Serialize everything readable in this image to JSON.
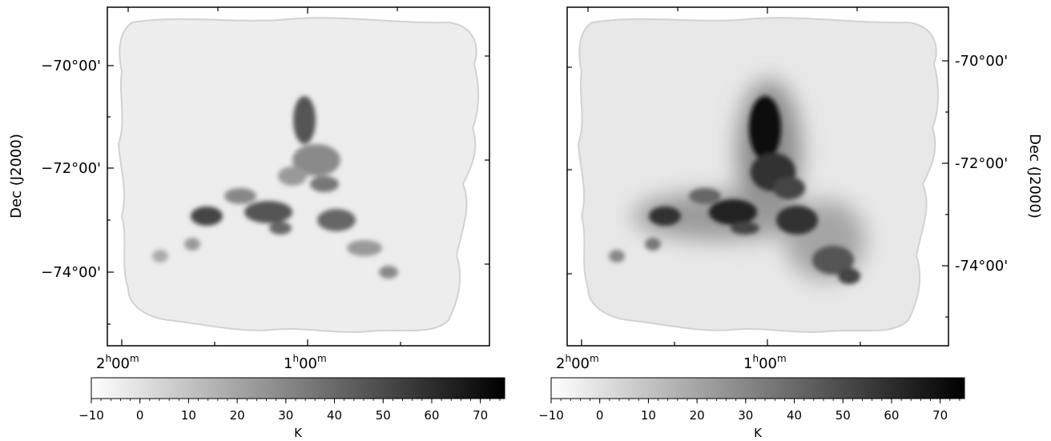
{
  "panels": [
    {
      "id": "left",
      "ra_ticks": [
        {
          "value": "2h00m",
          "h": "2",
          "m": "00"
        },
        {
          "value": "1h00m",
          "h": "1",
          "m": "00"
        }
      ],
      "dec_ticks": [
        "−70°00'",
        "−72°00'",
        "−74°00'"
      ],
      "dec_axis_title": "Dec (J2000)",
      "dec_axis_side": "left",
      "colorbar": {
        "label": "K",
        "ticks": [
          "−10",
          "0",
          "10",
          "20",
          "30",
          "40",
          "50",
          "60",
          "70"
        ],
        "range": [
          -10,
          75
        ],
        "colormap": "gray_r"
      }
    },
    {
      "id": "right",
      "ra_ticks": [
        {
          "value": "2h00m",
          "h": "2",
          "m": "00"
        },
        {
          "value": "1h00m",
          "h": "1",
          "m": "00"
        }
      ],
      "dec_ticks": [
        "-70°00'",
        "-72°00'",
        "-74°00'"
      ],
      "dec_axis_title": "Dec (J2000)",
      "dec_axis_side": "right",
      "colorbar": {
        "label": "K",
        "ticks": [
          "−10",
          "0",
          "10",
          "20",
          "30",
          "40",
          "50",
          "60",
          "70"
        ],
        "range": [
          -10,
          75
        ],
        "colormap": "gray_r"
      }
    }
  ]
}
